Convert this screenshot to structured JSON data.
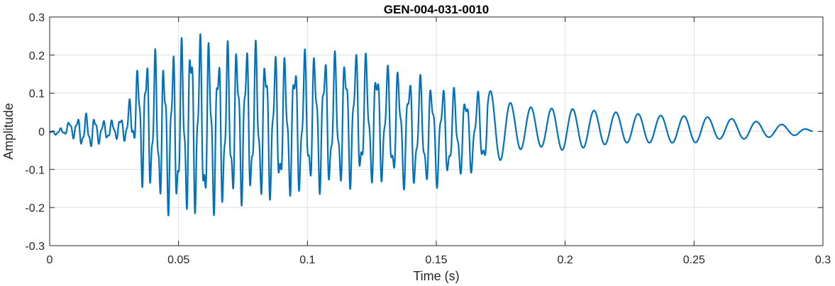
{
  "chart_data": {
    "type": "line",
    "title": "GEN-004-031-0010",
    "xlabel": "Time (s)",
    "ylabel": "Amplitude",
    "xlim": [
      0,
      0.3
    ],
    "ylim": [
      -0.3,
      0.3
    ],
    "x_ticks": [
      0,
      0.05,
      0.1,
      0.15,
      0.2,
      0.25,
      0.3
    ],
    "x_tick_labels": [
      "0",
      "0.05",
      "0.1",
      "0.15",
      "0.2",
      "0.25",
      "0.3"
    ],
    "y_ticks": [
      -0.3,
      -0.2,
      -0.1,
      0,
      0.1,
      0.2,
      0.3
    ],
    "y_tick_labels": [
      "-0.3",
      "-0.2",
      "-0.1",
      "0",
      "0.1",
      "0.2",
      "0.3"
    ],
    "grid": true,
    "series": [
      {
        "color": "#0072BD",
        "x": [
          0,
          0.005,
          0.008,
          0.012,
          0.015,
          0.02,
          0.025,
          0.03,
          0.033,
          0.036,
          0.04,
          0.045,
          0.05,
          0.055,
          0.06,
          0.065,
          0.07,
          0.08,
          0.09,
          0.1,
          0.11,
          0.12,
          0.13,
          0.14,
          0.15,
          0.16,
          0.17,
          0.18,
          0.19,
          0.2,
          0.21,
          0.22,
          0.23,
          0.24,
          0.25,
          0.26,
          0.27,
          0.28,
          0.29,
          0.296
        ],
        "envelope_upper": [
          0.0,
          0.01,
          0.03,
          0.04,
          0.05,
          0.03,
          0.03,
          0.05,
          0.16,
          0.2,
          0.22,
          0.2,
          0.24,
          0.28,
          0.26,
          0.23,
          0.24,
          0.24,
          0.2,
          0.22,
          0.21,
          0.22,
          0.18,
          0.16,
          0.13,
          0.11,
          0.11,
          0.07,
          0.06,
          0.06,
          0.055,
          0.05,
          0.045,
          0.04,
          0.04,
          0.035,
          0.03,
          0.02,
          0.015,
          0.0
        ],
        "envelope_lower": [
          -0.01,
          -0.01,
          -0.01,
          -0.04,
          -0.05,
          -0.03,
          -0.02,
          -0.03,
          -0.05,
          -0.15,
          -0.17,
          -0.22,
          -0.23,
          -0.22,
          -0.24,
          -0.22,
          -0.2,
          -0.19,
          -0.18,
          -0.17,
          -0.16,
          -0.15,
          -0.14,
          -0.16,
          -0.15,
          -0.12,
          -0.1,
          -0.05,
          -0.04,
          -0.05,
          -0.04,
          -0.03,
          -0.03,
          -0.03,
          -0.03,
          -0.02,
          -0.02,
          -0.015,
          -0.01,
          0.0
        ],
        "end_time": 0.296
      }
    ]
  }
}
